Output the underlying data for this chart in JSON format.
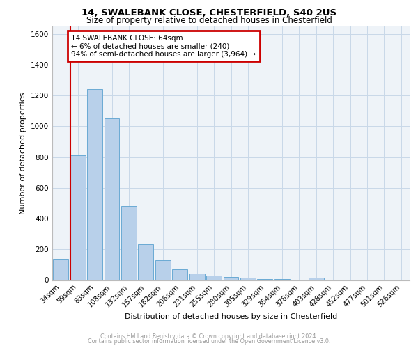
{
  "title1": "14, SWALEBANK CLOSE, CHESTERFIELD, S40 2US",
  "title2": "Size of property relative to detached houses in Chesterfield",
  "xlabel": "Distribution of detached houses by size in Chesterfield",
  "ylabel": "Number of detached properties",
  "bar_labels": [
    "34sqm",
    "59sqm",
    "83sqm",
    "108sqm",
    "132sqm",
    "157sqm",
    "182sqm",
    "206sqm",
    "231sqm",
    "255sqm",
    "280sqm",
    "305sqm",
    "329sqm",
    "354sqm",
    "378sqm",
    "403sqm",
    "428sqm",
    "452sqm",
    "477sqm",
    "501sqm",
    "526sqm"
  ],
  "bar_values": [
    140,
    810,
    1240,
    1050,
    480,
    235,
    130,
    70,
    45,
    30,
    22,
    15,
    8,
    5,
    3,
    18,
    0,
    0,
    0,
    0,
    0
  ],
  "bar_color": "#b8d0ea",
  "bar_edge_color": "#6aaad4",
  "grid_color": "#c8d8e8",
  "bg_color": "#eef3f8",
  "annotation_text1": "14 SWALEBANK CLOSE: 64sqm",
  "annotation_text2": "← 6% of detached houses are smaller (240)",
  "annotation_text3": "94% of semi-detached houses are larger (3,964) →",
  "annotation_box_color": "#ffffff",
  "annotation_border_color": "#cc0000",
  "ylim": [
    0,
    1650
  ],
  "yticks": [
    0,
    200,
    400,
    600,
    800,
    1000,
    1200,
    1400,
    1600
  ],
  "footer1": "Contains HM Land Registry data © Crown copyright and database right 2024.",
  "footer2": "Contains public sector information licensed under the Open Government Licence v3.0."
}
